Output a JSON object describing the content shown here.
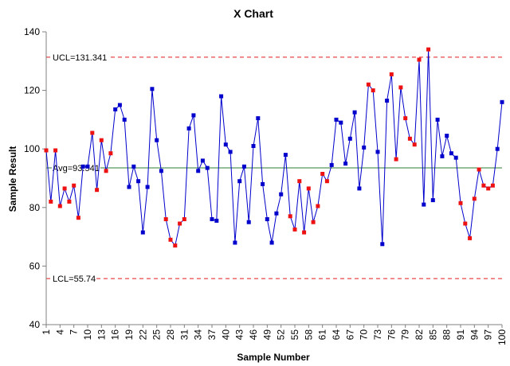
{
  "chart_data": {
    "type": "line",
    "title": "X Chart",
    "xlabel": "Sample Number",
    "ylabel": "Sample Result",
    "ylim": [
      40,
      140
    ],
    "yticks": [
      40,
      60,
      80,
      100,
      120,
      140
    ],
    "xlim": [
      1,
      100
    ],
    "xticks": [
      1,
      4,
      7,
      10,
      13,
      16,
      19,
      22,
      25,
      28,
      31,
      34,
      37,
      40,
      43,
      46,
      49,
      52,
      55,
      58,
      61,
      64,
      67,
      70,
      73,
      76,
      79,
      82,
      85,
      88,
      91,
      94,
      97,
      100
    ],
    "grid": false,
    "reference_lines": [
      {
        "name": "UCL",
        "label": "UCL=131.341",
        "value": 131.341,
        "color": "#e31a1c",
        "style": "dashed"
      },
      {
        "name": "Avg",
        "label": "Avg=93.541",
        "value": 93.541,
        "color": "#2e7d32",
        "style": "solid"
      },
      {
        "name": "LCL",
        "label": "LCL=55.74",
        "value": 55.74,
        "color": "#e31a1c",
        "style": "dashed"
      }
    ],
    "line_color": "#0000cc",
    "in_control_color": "#0000cc",
    "out_of_rule_color": "#ee1111",
    "series": [
      {
        "x": [
          1,
          2,
          3,
          4,
          5,
          6,
          7,
          8,
          9,
          10,
          11,
          12,
          13,
          14,
          15,
          16,
          17,
          18,
          19,
          20,
          21,
          22,
          23,
          24,
          25,
          26,
          27,
          28,
          29,
          30,
          31,
          32,
          33,
          34,
          35,
          36,
          37,
          38,
          39,
          40,
          41,
          42,
          43,
          44,
          45,
          46,
          47,
          48,
          49,
          50,
          51,
          52,
          53,
          54,
          55,
          56,
          57,
          58,
          59,
          60,
          61,
          62,
          63,
          64,
          65,
          66,
          67,
          68,
          69,
          70,
          71,
          72,
          73,
          74,
          75,
          76,
          77,
          78,
          79,
          80,
          81,
          82,
          83,
          84,
          85,
          86,
          87,
          88,
          89,
          90,
          91,
          92,
          93,
          94,
          95,
          96,
          97,
          98,
          99,
          100
        ],
        "values": [
          99.5,
          82,
          99.5,
          80.5,
          86.5,
          82,
          87.5,
          76.5,
          94,
          94,
          105.5,
          86,
          103,
          92.5,
          98.5,
          113.5,
          115,
          110,
          87,
          94,
          89,
          71.5,
          87,
          120.5,
          103,
          92.5,
          76,
          69,
          67,
          74.5,
          76,
          107,
          111.5,
          92.5,
          96,
          93.5,
          76,
          75.5,
          118,
          101.5,
          99,
          68,
          89,
          94,
          75,
          101,
          110.5,
          88,
          76,
          68,
          78,
          84.5,
          98,
          77,
          72.5,
          89,
          71.5,
          86.5,
          75,
          80.5,
          91.5,
          89,
          94.5,
          110,
          109,
          95,
          103.5,
          112.5,
          86.5,
          100.5,
          122,
          120,
          99,
          67.5,
          116.5,
          125.5,
          96.5,
          121,
          110.5,
          103.5,
          101.5,
          130.5,
          81,
          134,
          82.5,
          110,
          97.5,
          104.5,
          98.5,
          97,
          81.5,
          74.5,
          69.5,
          83,
          93,
          87.5,
          86.5,
          87.5,
          100,
          116
        ],
        "flags": [
          1,
          1,
          1,
          1,
          1,
          1,
          1,
          1,
          0,
          0,
          1,
          1,
          1,
          1,
          1,
          0,
          0,
          0,
          0,
          0,
          0,
          0,
          0,
          0,
          0,
          0,
          1,
          1,
          1,
          1,
          1,
          0,
          0,
          0,
          0,
          0,
          0,
          0,
          0,
          0,
          0,
          0,
          0,
          0,
          0,
          0,
          0,
          0,
          0,
          0,
          0,
          0,
          0,
          1,
          1,
          1,
          1,
          1,
          1,
          1,
          1,
          1,
          0,
          0,
          0,
          0,
          0,
          0,
          0,
          0,
          1,
          1,
          0,
          0,
          0,
          1,
          1,
          1,
          1,
          1,
          1,
          1,
          0,
          1,
          0,
          0,
          0,
          0,
          0,
          0,
          1,
          1,
          1,
          1,
          1,
          1,
          1,
          1,
          0,
          0
        ]
      }
    ]
  }
}
